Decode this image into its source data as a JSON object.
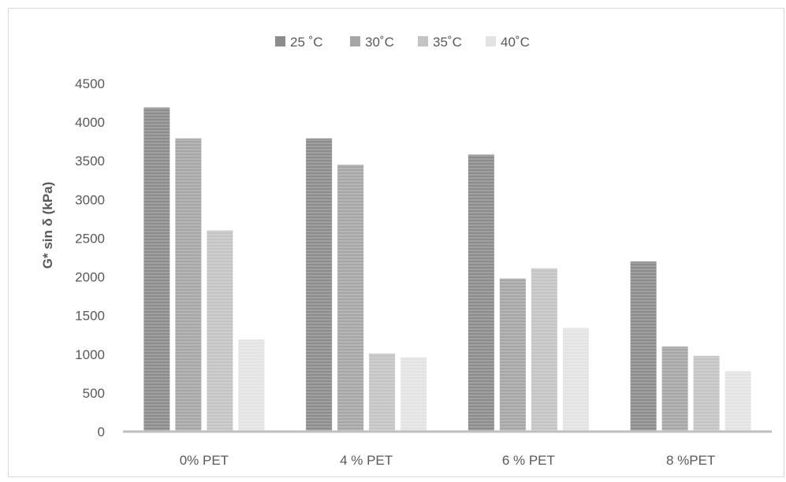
{
  "chart_data": {
    "type": "bar",
    "categories": [
      "0% PET",
      "4 % PET",
      "6 % PET",
      "8  %PET"
    ],
    "series": [
      {
        "name": "25 ˚C",
        "values": [
          4190,
          3790,
          3580,
          2200
        ],
        "color": "#8c8c8c"
      },
      {
        "name": "30˚C",
        "values": [
          3790,
          3450,
          1980,
          1100
        ],
        "color": "#a6a6a6"
      },
      {
        "name": "35˚C",
        "values": [
          2600,
          1010,
          2110,
          980
        ],
        "color": "#c4c4c4"
      },
      {
        "name": "40˚C",
        "values": [
          1190,
          960,
          1340,
          780
        ],
        "color": "#e3e3e3"
      }
    ],
    "ylabel": "G* sin δ (kPa)",
    "ylim": [
      0,
      4500
    ],
    "yticks": [
      "0",
      "500",
      "1000",
      "1500",
      "2000",
      "2500",
      "3000",
      "3500",
      "4000",
      "4500"
    ],
    "legend_position": "top",
    "grid": false
  }
}
